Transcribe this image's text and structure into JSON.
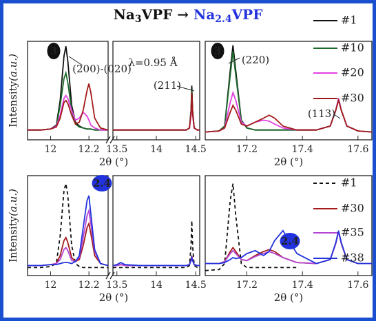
{
  "title": [
    "Na",
    "3",
    "VPF",
    " → ",
    "Na",
    "2.4",
    "VPF"
  ],
  "chart_data": [
    {
      "type": "line",
      "ylabel": [
        "Intensity",
        "(a.u.)"
      ],
      "xlabel": "2θ (°)",
      "xlim": [
        11.88,
        12.3
      ],
      "xticks": [
        12.0,
        12.2
      ],
      "ylim": [
        0,
        100
      ],
      "x": [
        11.88,
        11.95,
        12.0,
        12.03,
        12.05,
        12.07,
        12.08,
        12.09,
        12.11,
        12.13,
        12.15,
        12.17,
        12.19,
        12.2,
        12.21,
        12.23,
        12.26,
        12.3
      ],
      "series": [
        {
          "name": "#1",
          "color": "#111111",
          "values": [
            10,
            10,
            11,
            15,
            40,
            85,
            95,
            80,
            35,
            18,
            14,
            12,
            11,
            11,
            11,
            10,
            10,
            10
          ]
        },
        {
          "name": "#10",
          "color": "#1d6b2c",
          "values": [
            10,
            10,
            11,
            14,
            35,
            62,
            68,
            58,
            30,
            16,
            13,
            12,
            11,
            11,
            11,
            10,
            10,
            10
          ]
        },
        {
          "name": "#20",
          "color": "#e040e0",
          "values": [
            10,
            10,
            11,
            14,
            25,
            42,
            45,
            42,
            30,
            20,
            22,
            28,
            24,
            20,
            15,
            12,
            10,
            10
          ]
        },
        {
          "name": "#30",
          "color": "#a31a1a",
          "values": [
            10,
            10,
            11,
            13,
            22,
            38,
            40,
            37,
            25,
            16,
            18,
            30,
            50,
            57,
            48,
            22,
            12,
            10
          ]
        }
      ],
      "annotations": [
        {
          "text": "3",
          "style": "badge"
        },
        {
          "text": "(200)-(020)",
          "style": "label"
        }
      ]
    },
    {
      "type": "line",
      "xlim": [
        13.45,
        14.55
      ],
      "xticks": [
        13.5,
        14.0,
        14.5
      ],
      "ylim": [
        0,
        100
      ],
      "x": [
        13.45,
        13.6,
        13.8,
        14.0,
        14.2,
        14.38,
        14.42,
        14.44,
        14.45,
        14.46,
        14.48,
        14.52,
        14.55
      ],
      "series": [
        {
          "name": "#1",
          "color": "#111111",
          "values": [
            10,
            10,
            10,
            10,
            10,
            10,
            12,
            30,
            55,
            30,
            12,
            10,
            10
          ]
        },
        {
          "name": "#10",
          "color": "#1d6b2c",
          "values": [
            10,
            10,
            10,
            10,
            10,
            10,
            12,
            28,
            50,
            28,
            12,
            10,
            10
          ]
        },
        {
          "name": "#20",
          "color": "#e040e0",
          "values": [
            10,
            10,
            10,
            10,
            10,
            10,
            12,
            25,
            45,
            25,
            12,
            10,
            10
          ]
        },
        {
          "name": "#30",
          "color": "#a31a1a",
          "values": [
            10,
            10,
            10,
            10,
            10,
            10,
            12,
            27,
            48,
            27,
            12,
            10,
            10
          ]
        }
      ],
      "annotations": [
        {
          "text": "λ=0.95 Å",
          "style": "label"
        },
        {
          "text": "(211)",
          "style": "label"
        }
      ]
    },
    {
      "type": "line",
      "xlabel": "2θ (°)",
      "legend": "right",
      "xlim": [
        17.05,
        17.65
      ],
      "xticks": [
        17.2,
        17.4,
        17.6
      ],
      "ylim": [
        0,
        100
      ],
      "x": [
        17.05,
        17.1,
        17.12,
        17.14,
        17.15,
        17.16,
        17.18,
        17.2,
        17.23,
        17.26,
        17.28,
        17.3,
        17.33,
        17.38,
        17.45,
        17.5,
        17.52,
        17.53,
        17.54,
        17.56,
        17.6,
        17.65
      ],
      "series": [
        {
          "name": "#1",
          "color": "#111111",
          "values": [
            8,
            9,
            14,
            70,
            96,
            70,
            20,
            12,
            10,
            10,
            10,
            10,
            10,
            10,
            10,
            14,
            30,
            42,
            30,
            14,
            9,
            8
          ]
        },
        {
          "name": "#10",
          "color": "#1d6b2c",
          "values": [
            8,
            9,
            14,
            65,
            90,
            65,
            20,
            12,
            10,
            10,
            10,
            10,
            10,
            10,
            10,
            14,
            30,
            41,
            30,
            14,
            9,
            8
          ]
        },
        {
          "name": "#20",
          "color": "#e040e0",
          "values": [
            8,
            9,
            12,
            38,
            48,
            40,
            18,
            14,
            18,
            20,
            19,
            16,
            12,
            10,
            10,
            14,
            30,
            42,
            30,
            14,
            9,
            8
          ]
        },
        {
          "name": "#30",
          "color": "#a31a1a",
          "values": [
            8,
            9,
            12,
            28,
            35,
            30,
            16,
            14,
            18,
            22,
            25,
            22,
            14,
            10,
            10,
            14,
            30,
            40,
            30,
            14,
            9,
            8
          ]
        }
      ],
      "annotations": [
        {
          "text": "3",
          "style": "badge"
        },
        {
          "text": "(220)",
          "style": "label"
        },
        {
          "text": "(113)",
          "style": "label"
        }
      ]
    },
    {
      "type": "line",
      "ylabel": [
        "Intensity",
        "(a.u.)"
      ],
      "xlabel": "2θ (°)",
      "xlim": [
        11.88,
        12.3
      ],
      "xticks": [
        12.0,
        12.2
      ],
      "ylim": [
        0,
        100
      ],
      "x": [
        11.88,
        11.95,
        12.0,
        12.03,
        12.05,
        12.07,
        12.08,
        12.09,
        12.11,
        12.13,
        12.15,
        12.17,
        12.19,
        12.2,
        12.21,
        12.23,
        12.26,
        12.3
      ],
      "series": [
        {
          "name": "#1",
          "color": "#111111",
          "dash": true,
          "values": [
            8,
            8,
            9,
            12,
            40,
            85,
            92,
            80,
            30,
            12,
            9,
            8,
            8,
            8,
            8,
            8,
            8,
            8
          ]
        },
        {
          "name": "#30",
          "color": "#a31a1a",
          "values": [
            10,
            10,
            11,
            12,
            20,
            35,
            38,
            33,
            18,
            14,
            16,
            30,
            48,
            52,
            42,
            20,
            12,
            10
          ]
        },
        {
          "name": "#35",
          "color": "#b444d4",
          "values": [
            10,
            10,
            11,
            12,
            16,
            26,
            28,
            25,
            15,
            14,
            18,
            38,
            60,
            65,
            52,
            24,
            12,
            10
          ]
        },
        {
          "name": "#38",
          "color": "#2233dd",
          "values": [
            10,
            10,
            11,
            11,
            12,
            13,
            13,
            13,
            12,
            14,
            20,
            48,
            75,
            80,
            62,
            26,
            12,
            10
          ]
        }
      ],
      "annotations": [
        {
          "text": "2.4",
          "style": "badge"
        }
      ]
    },
    {
      "type": "line",
      "xlim": [
        13.45,
        14.55
      ],
      "xticks": [
        13.5,
        14.0,
        14.5
      ],
      "ylim": [
        0,
        100
      ],
      "x": [
        13.45,
        13.5,
        13.55,
        13.6,
        13.8,
        14.0,
        14.2,
        14.38,
        14.42,
        14.44,
        14.45,
        14.46,
        14.48,
        14.52,
        14.55
      ],
      "series": [
        {
          "name": "#1",
          "color": "#111111",
          "dash": true,
          "values": [
            8,
            8,
            8,
            8,
            8,
            8,
            8,
            8,
            10,
            30,
            55,
            30,
            10,
            8,
            8
          ]
        },
        {
          "name": "#30",
          "color": "#a31a1a",
          "values": [
            10,
            10,
            11,
            10,
            10,
            10,
            10,
            10,
            11,
            16,
            20,
            16,
            11,
            10,
            10
          ]
        },
        {
          "name": "#35",
          "color": "#b444d4",
          "values": [
            10,
            10,
            11,
            10,
            10,
            10,
            10,
            10,
            11,
            15,
            19,
            15,
            11,
            10,
            10
          ]
        },
        {
          "name": "#38",
          "color": "#2233dd",
          "values": [
            10,
            11,
            13,
            11,
            10,
            10,
            10,
            10,
            11,
            15,
            18,
            15,
            11,
            10,
            10
          ]
        }
      ],
      "annotations": []
    },
    {
      "type": "line",
      "xlabel": "2θ (°)",
      "legend": "right",
      "xlim": [
        17.05,
        17.65
      ],
      "xticks": [
        17.2,
        17.4,
        17.6
      ],
      "ylim": [
        0,
        100
      ],
      "x": [
        17.05,
        17.1,
        17.12,
        17.14,
        17.15,
        17.16,
        17.18,
        17.2,
        17.23,
        17.26,
        17.28,
        17.3,
        17.33,
        17.38,
        17.45,
        17.5,
        17.52,
        17.53,
        17.54,
        17.56,
        17.6,
        17.65
      ],
      "series": [
        {
          "name": "#1",
          "color": "#111111",
          "dash": true,
          "values": [
            5,
            6,
            12,
            75,
            92,
            60,
            12,
            8,
            8,
            8,
            8,
            8,
            8,
            8,
            null,
            null,
            null,
            null,
            null,
            null,
            null,
            null
          ]
        },
        {
          "name": "#30",
          "color": "#a31a1a",
          "values": [
            12,
            12,
            14,
            24,
            28,
            24,
            16,
            15,
            20,
            24,
            26,
            24,
            18,
            13,
            12,
            16,
            32,
            44,
            32,
            16,
            12,
            12
          ]
        },
        {
          "name": "#35",
          "color": "#b444d4",
          "values": [
            12,
            12,
            14,
            22,
            25,
            22,
            16,
            15,
            19,
            22,
            24,
            22,
            18,
            13,
            12,
            16,
            32,
            44,
            32,
            16,
            12,
            12
          ]
        },
        {
          "name": "#38",
          "color": "#2233dd",
          "values": [
            12,
            12,
            13,
            16,
            18,
            17,
            18,
            22,
            25,
            20,
            24,
            35,
            45,
            22,
            12,
            16,
            33,
            45,
            33,
            16,
            12,
            12
          ]
        }
      ],
      "annotations": [
        {
          "text": "2.4",
          "style": "badge"
        }
      ]
    }
  ]
}
